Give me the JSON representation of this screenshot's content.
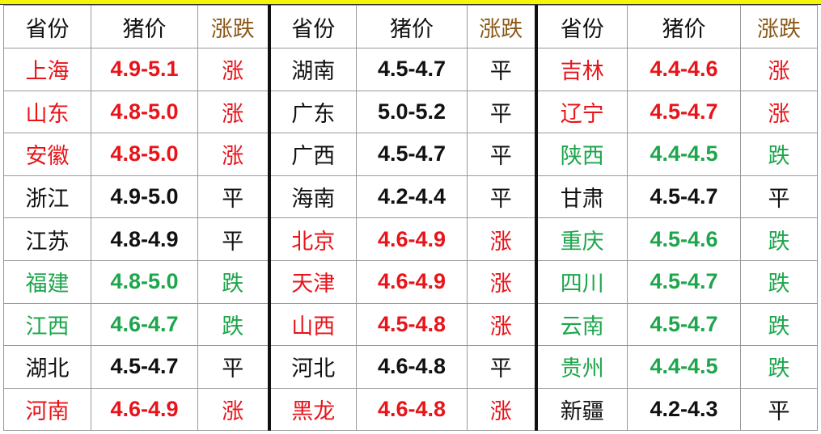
{
  "headers": {
    "province": "省份",
    "price": "猪价",
    "change": "涨跌"
  },
  "colors": {
    "up": "#e8141a",
    "down": "#1ea64c",
    "flat": "#111111",
    "header_change": "#8b5a1a",
    "top_bar": "#f5f50a"
  },
  "groups": [
    [
      {
        "p": "上海",
        "v": "4.9-5.1",
        "c": "涨"
      },
      {
        "p": "山东",
        "v": "4.8-5.0",
        "c": "涨"
      },
      {
        "p": "安徽",
        "v": "4.8-5.0",
        "c": "涨"
      },
      {
        "p": "浙江",
        "v": "4.9-5.0",
        "c": "平"
      },
      {
        "p": "江苏",
        "v": "4.8-4.9",
        "c": "平"
      },
      {
        "p": "福建",
        "v": "4.8-5.0",
        "c": "跌"
      },
      {
        "p": "江西",
        "v": "4.6-4.7",
        "c": "跌"
      },
      {
        "p": "湖北",
        "v": "4.5-4.7",
        "c": "平"
      },
      {
        "p": "河南",
        "v": "4.6-4.9",
        "c": "涨"
      }
    ],
    [
      {
        "p": "湖南",
        "v": "4.5-4.7",
        "c": "平"
      },
      {
        "p": "广东",
        "v": "5.0-5.2",
        "c": "平"
      },
      {
        "p": "广西",
        "v": "4.5-4.7",
        "c": "平"
      },
      {
        "p": "海南",
        "v": "4.2-4.4",
        "c": "平"
      },
      {
        "p": "北京",
        "v": "4.6-4.9",
        "c": "涨"
      },
      {
        "p": "天津",
        "v": "4.6-4.9",
        "c": "涨"
      },
      {
        "p": "山西",
        "v": "4.5-4.8",
        "c": "涨"
      },
      {
        "p": "河北",
        "v": "4.6-4.8",
        "c": "平"
      },
      {
        "p": "黑龙",
        "v": "4.6-4.8",
        "c": "涨"
      }
    ],
    [
      {
        "p": "吉林",
        "v": "4.4-4.6",
        "c": "涨"
      },
      {
        "p": "辽宁",
        "v": "4.5-4.7",
        "c": "涨"
      },
      {
        "p": "陕西",
        "v": "4.4-4.5",
        "c": "跌"
      },
      {
        "p": "甘肃",
        "v": "4.5-4.7",
        "c": "平"
      },
      {
        "p": "重庆",
        "v": "4.5-4.6",
        "c": "跌"
      },
      {
        "p": "四川",
        "v": "4.5-4.7",
        "c": "跌"
      },
      {
        "p": "云南",
        "v": "4.5-4.7",
        "c": "跌"
      },
      {
        "p": "贵州",
        "v": "4.4-4.5",
        "c": "跌"
      },
      {
        "p": "新疆",
        "v": "4.2-4.3",
        "c": "平"
      }
    ]
  ]
}
